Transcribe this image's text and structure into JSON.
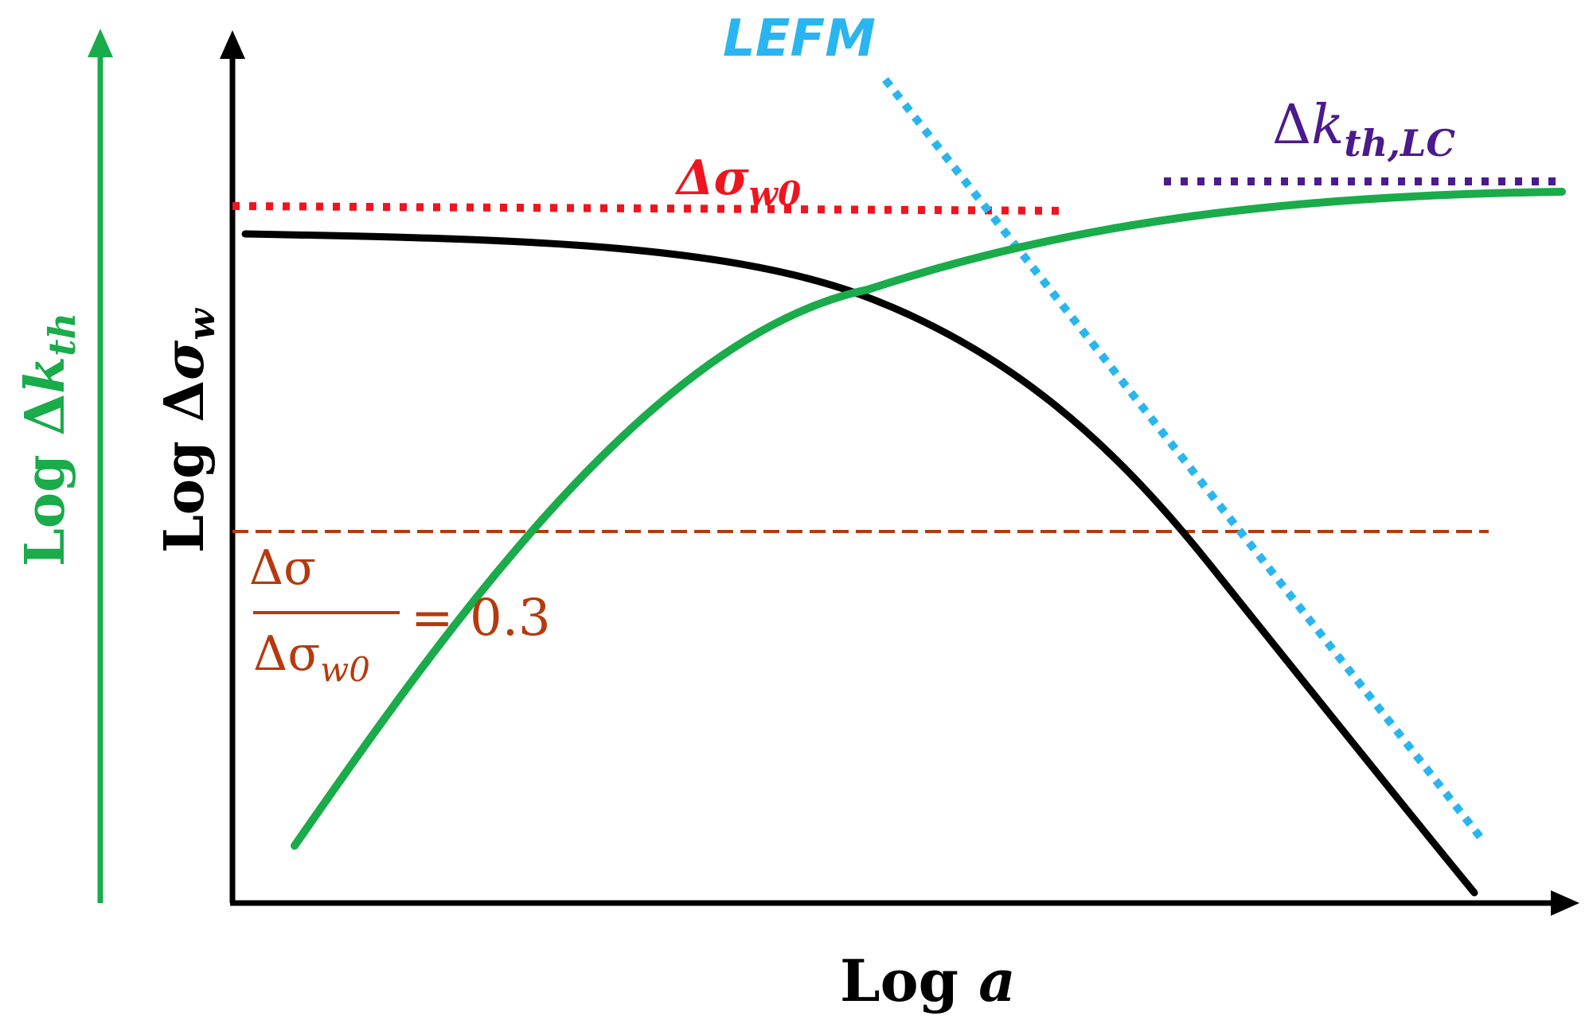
{
  "labels": {
    "x_axis": {
      "prefix": "Log ",
      "symbol": "a"
    },
    "y_axis": {
      "prefix": "Log Δ",
      "symbol": "σ",
      "subscript": "w"
    },
    "kth_axis": {
      "prefix": "Log Δ",
      "symbol": "k",
      "subscript": "th"
    },
    "lefm": "LEFM",
    "sigma_w0": {
      "symbol": "Δσ",
      "subscript": "w0"
    },
    "kth_lc": {
      "prefix": "Δ",
      "symbol": "k",
      "subscript": "th,LC"
    },
    "ratio": {
      "numerator": "Δσ",
      "denominator_symbol": "Δσ",
      "denominator_subscript": "w0",
      "equals": "= 0.3"
    }
  },
  "colors": {
    "axes": "#000000",
    "fatigue_limit_curve": "#000000",
    "threshold_curve": "#1aab4a",
    "lefm_line": "#29b6f0",
    "sigma_w0_line": "#f0141e",
    "kth_lc_line": "#4b1a8c",
    "ratio_line": "#b53a0e",
    "kth_axis_label": "#1aab4a",
    "ratio_label": "#b53a0e"
  }
}
